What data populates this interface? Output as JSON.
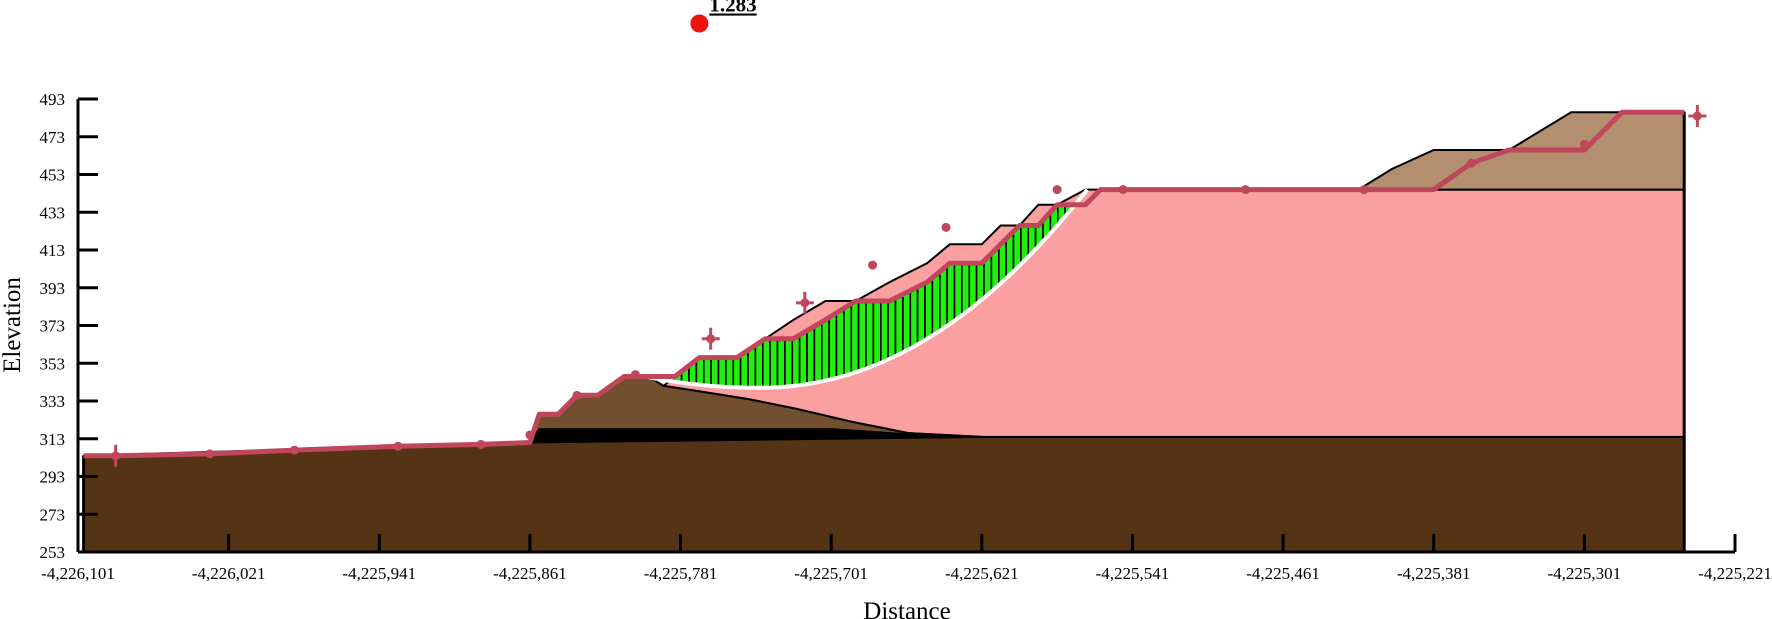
{
  "chart_data": {
    "type": "area",
    "xlabel": "Distance",
    "ylabel": "Elevation",
    "xlim": [
      -4226101,
      -4225221
    ],
    "ylim": [
      253,
      493
    ],
    "x_ticks": [
      -4226101,
      -4226021,
      -4225941,
      -4225861,
      -4225781,
      -4225701,
      -4225621,
      -4225541,
      -4225461,
      -4225381,
      -4225301,
      -4225221
    ],
    "x_tick_labels": [
      "-4,226,101",
      "-4,226,021",
      "-4,225,941",
      "-4,225,861",
      "-4,225,781",
      "-4,225,701",
      "-4,225,621",
      "-4,225,541",
      "-4,225,461",
      "-4,225,381",
      "-4,225,301",
      "-4,225,221"
    ],
    "y_ticks": [
      253,
      273,
      293,
      313,
      333,
      353,
      373,
      393,
      413,
      433,
      453,
      473,
      493
    ],
    "y_tick_labels": [
      "253",
      "273",
      "293",
      "313",
      "333",
      "353",
      "373",
      "393",
      "413",
      "433",
      "453",
      "473",
      "493"
    ],
    "factor_of_safety": {
      "label": "1.283",
      "x": -4225771,
      "y": 533
    },
    "colors": {
      "ground_surface": "#c0475b",
      "bedrock": "#553416",
      "upper_brown": "#b38f70",
      "fill_brown": "#724f2e",
      "pink_layer": "#fba0a0",
      "slice_fill": "#22ee11",
      "slice_dark": "#000000",
      "fos_marker": "#ee1111",
      "slip_surface": "#ffffff"
    },
    "regions": [
      {
        "name": "bedrock",
        "points": [
          [
            -4226098,
            253
          ],
          [
            -4225248,
            253
          ],
          [
            -4225248,
            314
          ],
          [
            -4225621,
            314
          ],
          [
            -4225861,
            311
          ],
          [
            -4226098,
            304
          ]
        ]
      },
      {
        "name": "pink-material",
        "points": [
          [
            -4225621,
            314
          ],
          [
            -4225248,
            314
          ],
          [
            -4225248,
            445
          ],
          [
            -4225558,
            445
          ],
          [
            -4225566,
            445
          ],
          [
            -4225581,
            437
          ],
          [
            -4225591,
            437
          ],
          [
            -4225601,
            426
          ],
          [
            -4225611,
            426
          ],
          [
            -4225621,
            416
          ],
          [
            -4225638,
            416
          ],
          [
            -4225650,
            406
          ],
          [
            -4225670,
            396
          ],
          [
            -4225688,
            386
          ],
          [
            -4225704,
            386
          ],
          [
            -4225721,
            376
          ],
          [
            -4225736,
            366
          ],
          [
            -4225751,
            356
          ],
          [
            -4225771,
            356
          ],
          [
            -4225784,
            346
          ],
          [
            -4225790,
            341
          ],
          [
            -4225770,
            338
          ],
          [
            -4225745,
            334
          ],
          [
            -4225720,
            329
          ],
          [
            -4225690,
            322
          ],
          [
            -4225660,
            316
          ]
        ]
      },
      {
        "name": "upper-brown-material",
        "points": [
          [
            -4225248,
            445
          ],
          [
            -4225248,
            486
          ],
          [
            -4225308,
            486
          ],
          [
            -4225341,
            466
          ],
          [
            -4225381,
            466
          ],
          [
            -4225403,
            456
          ],
          [
            -4225421,
            445
          ]
        ]
      },
      {
        "name": "fill-brown-material",
        "points": [
          [
            -4225861,
            312
          ],
          [
            -4225621,
            314
          ],
          [
            -4225660,
            316
          ],
          [
            -4225690,
            322
          ],
          [
            -4225720,
            329
          ],
          [
            -4225745,
            334
          ],
          [
            -4225770,
            338
          ],
          [
            -4225790,
            341
          ],
          [
            -4225798,
            346
          ],
          [
            -4225811,
            346
          ],
          [
            -4225825,
            336
          ],
          [
            -4225836,
            336
          ],
          [
            -4225846,
            326
          ],
          [
            -4225856,
            326
          ]
        ]
      },
      {
        "name": "dark-seam",
        "points": [
          [
            -4225861,
            312
          ],
          [
            -4225640,
            314
          ],
          [
            -4225700,
            318
          ],
          [
            -4225856,
            318
          ]
        ]
      }
    ],
    "ground_surface": [
      [
        -4226098,
        304
      ],
      [
        -4226081,
        304
      ],
      [
        -4226031,
        305
      ],
      [
        -4225986,
        307
      ],
      [
        -4225931,
        309
      ],
      [
        -4225887,
        310
      ],
      [
        -4225861,
        311
      ],
      [
        -4225856,
        326
      ],
      [
        -4225846,
        326
      ],
      [
        -4225836,
        336
      ],
      [
        -4225825,
        336
      ],
      [
        -4225811,
        346
      ],
      [
        -4225798,
        346
      ],
      [
        -4225784,
        346
      ],
      [
        -4225771,
        356
      ],
      [
        -4225751,
        356
      ],
      [
        -4225736,
        366
      ],
      [
        -4225721,
        366
      ],
      [
        -4225704,
        376
      ],
      [
        -4225688,
        386
      ],
      [
        -4225670,
        386
      ],
      [
        -4225650,
        396
      ],
      [
        -4225638,
        406
      ],
      [
        -4225621,
        406
      ],
      [
        -4225611,
        416
      ],
      [
        -4225601,
        426
      ],
      [
        -4225591,
        426
      ],
      [
        -4225581,
        437
      ],
      [
        -4225566,
        437
      ],
      [
        -4225558,
        445
      ],
      [
        -4225481,
        445
      ],
      [
        -4225418,
        445
      ],
      [
        -4225381,
        445
      ],
      [
        -4225361,
        459
      ],
      [
        -4225341,
        466
      ],
      [
        -4225301,
        466
      ],
      [
        -4225281,
        486
      ],
      [
        -4225248,
        486
      ]
    ],
    "surface_points": [
      [
        -4226081,
        304
      ],
      [
        -4226031,
        305
      ],
      [
        -4225986,
        307
      ],
      [
        -4225931,
        309
      ],
      [
        -4225887,
        310
      ],
      [
        -4225861,
        315
      ],
      [
        -4225836,
        336
      ],
      [
        -4225805,
        347
      ],
      [
        -4225765,
        366
      ],
      [
        -4225715,
        385
      ],
      [
        -4225679,
        405
      ],
      [
        -4225640,
        425
      ],
      [
        -4225581,
        445
      ],
      [
        -4225546,
        445
      ],
      [
        -4225481,
        445
      ],
      [
        -4225418,
        445
      ],
      [
        -4225361,
        459
      ],
      [
        -4225301,
        469
      ],
      [
        -4225241,
        484
      ]
    ],
    "cross_points": [
      [
        -4226081,
        304
      ],
      [
        -4225765,
        366
      ],
      [
        -4225715,
        385
      ],
      [
        -4225241,
        484
      ]
    ],
    "slip_surface": {
      "x_left": -4225800,
      "x_right": -4225565,
      "y_bottom": 340,
      "y_top": 445,
      "x_bottom": -4225740
    },
    "slice_count": 60
  }
}
